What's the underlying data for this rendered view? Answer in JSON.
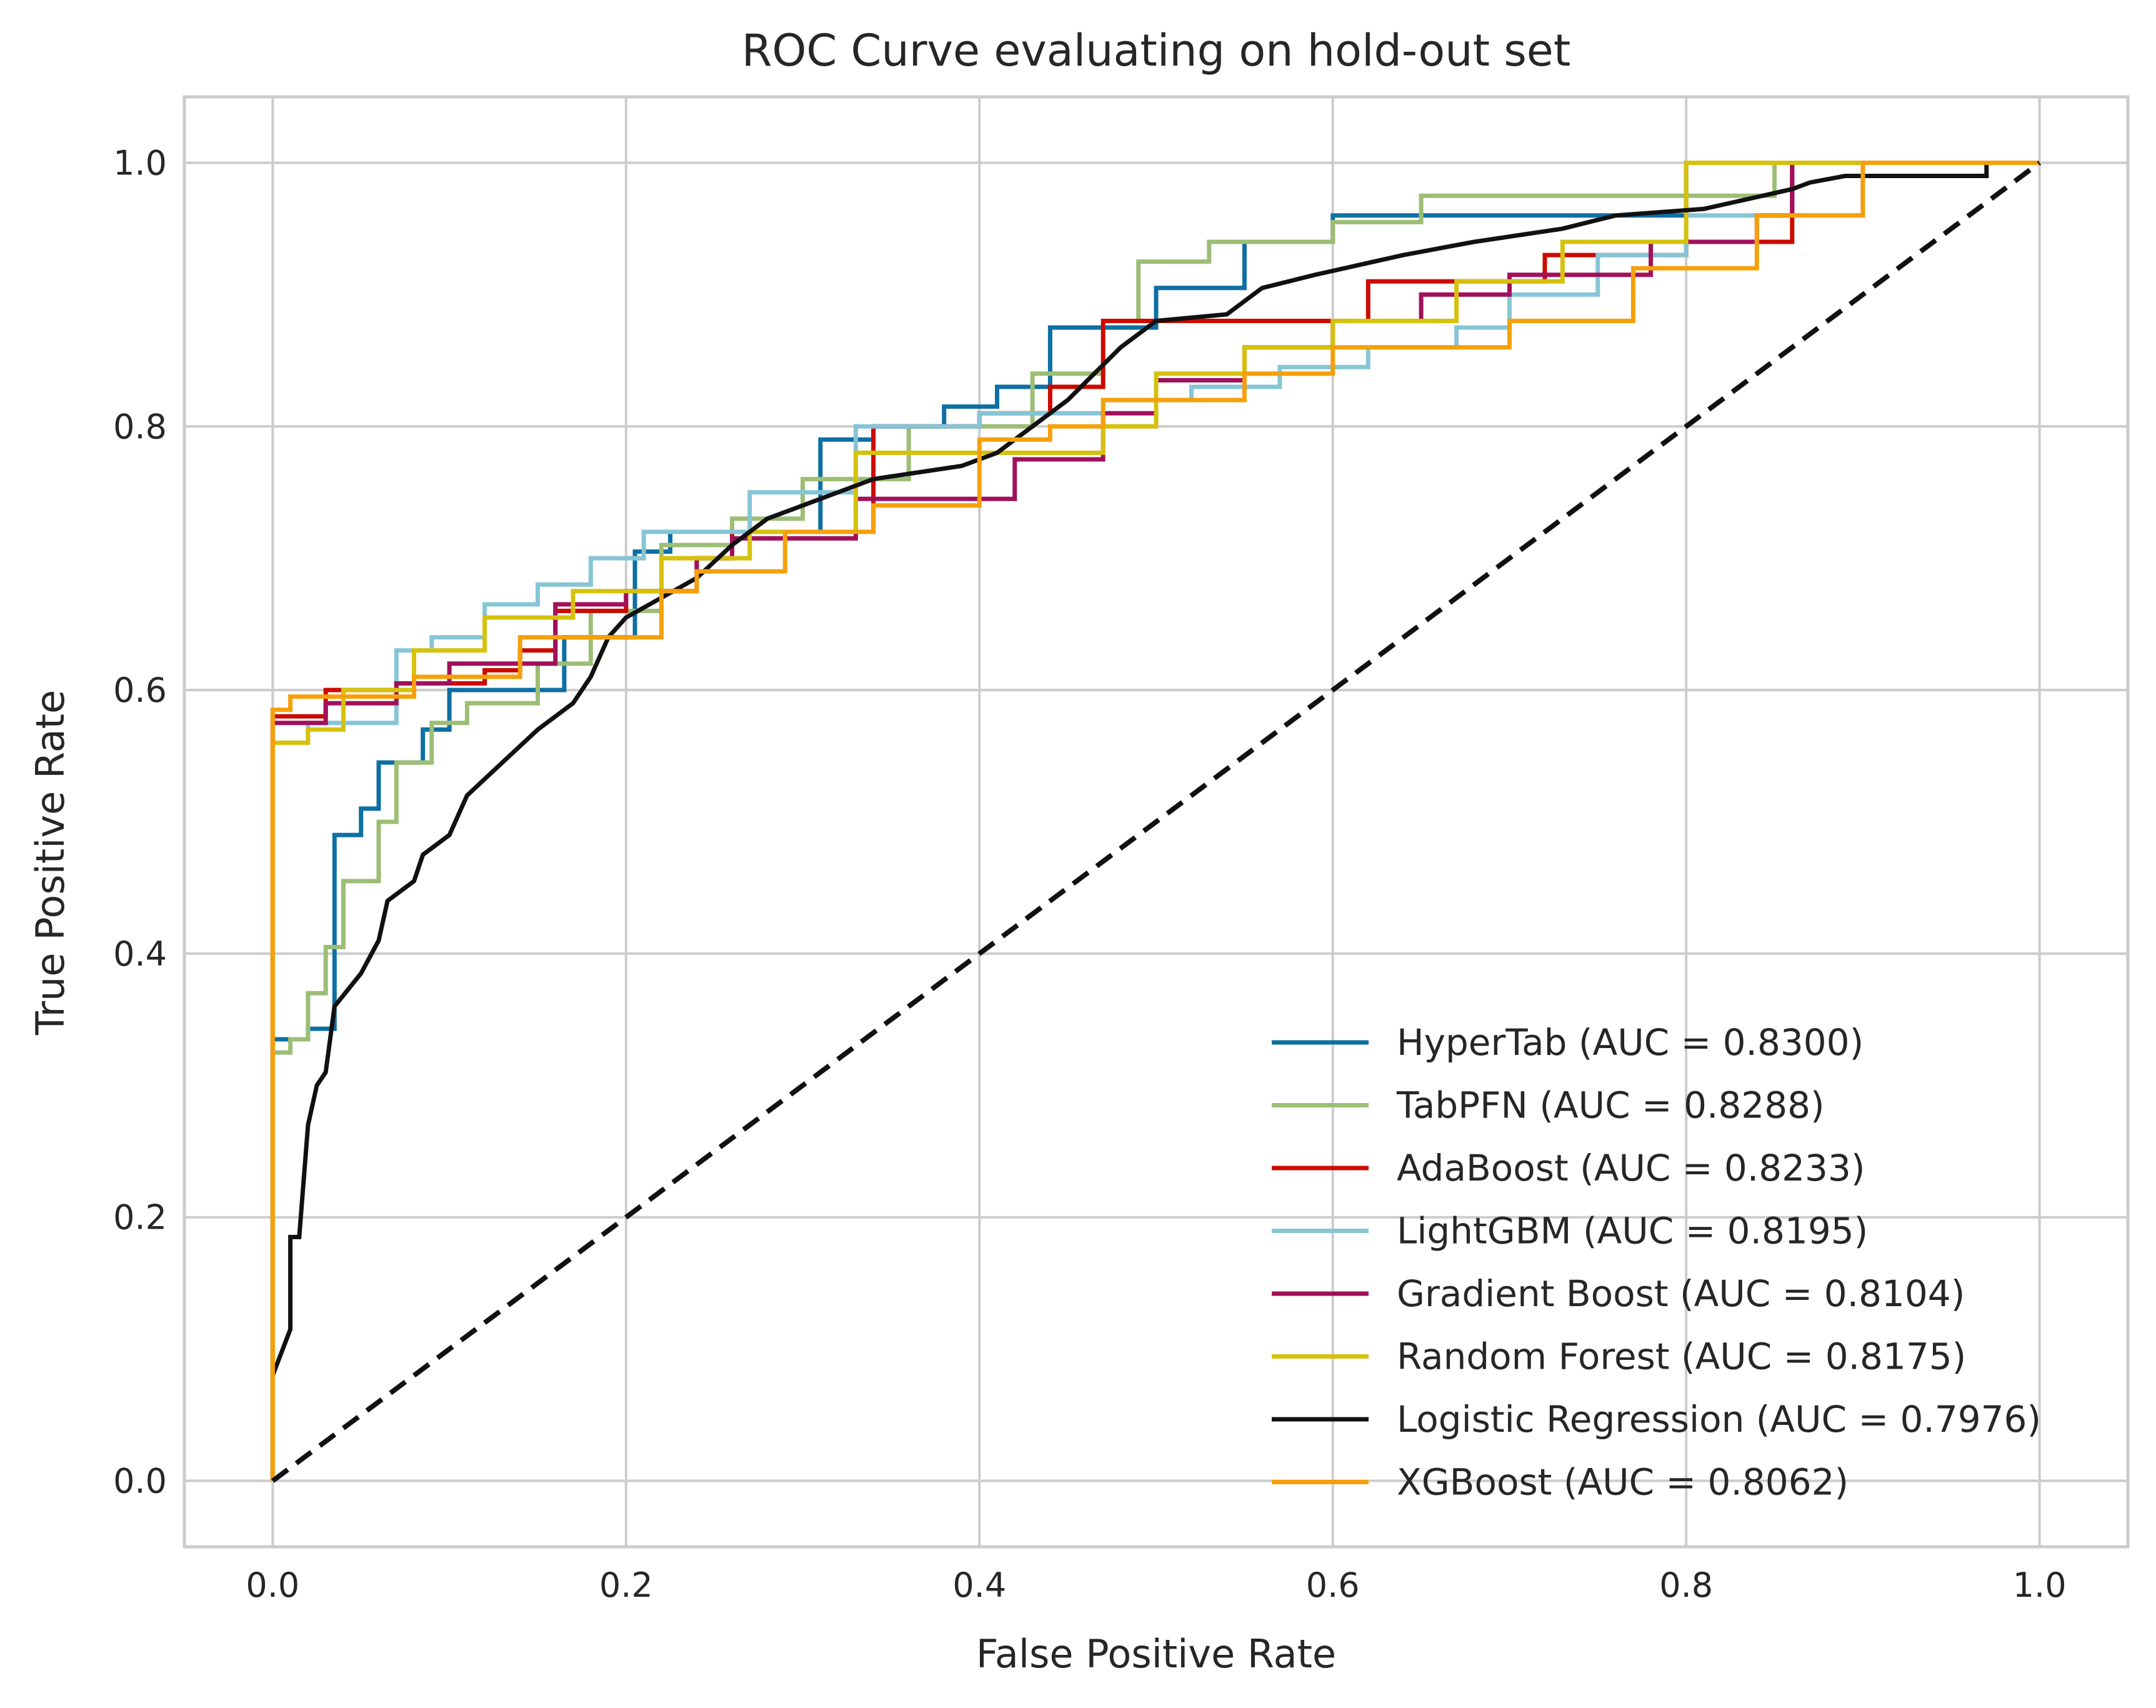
{
  "chart_data": {
    "type": "line",
    "title": "ROC Curve evaluating on hold-out set",
    "xlabel": "False Positive Rate",
    "ylabel": "True Positive Rate",
    "xlim": [
      -0.05,
      1.05
    ],
    "ylim": [
      -0.05,
      1.05
    ],
    "xticks": [
      "0.0",
      "0.2",
      "0.4",
      "0.6",
      "0.8",
      "1.0"
    ],
    "yticks": [
      "0.0",
      "0.2",
      "0.4",
      "0.6",
      "0.8",
      "1.0"
    ],
    "grid": true,
    "legend_position": "lower-right",
    "baseline": {
      "x": [
        0,
        1
      ],
      "y": [
        0,
        1
      ],
      "color": "#111111",
      "style": "dashed"
    },
    "series": [
      {
        "name": "HyperTab (AUC = 0.8300)",
        "color": "#0e6fa3",
        "x": [
          0,
          0,
          0.02,
          0.02,
          0.035,
          0.035,
          0.05,
          0.05,
          0.06,
          0.06,
          0.085,
          0.085,
          0.1,
          0.1,
          0.115,
          0.115,
          0.165,
          0.165,
          0.205,
          0.205,
          0.225,
          0.225,
          0.31,
          0.31,
          0.34,
          0.34,
          0.38,
          0.38,
          0.41,
          0.41,
          0.44,
          0.44,
          0.5,
          0.5,
          0.55,
          0.55,
          0.6,
          0.6,
          0.8,
          0.8,
          1.0
        ],
        "y": [
          0,
          0.335,
          0.335,
          0.343,
          0.343,
          0.49,
          0.49,
          0.51,
          0.51,
          0.545,
          0.545,
          0.57,
          0.57,
          0.6,
          0.6,
          0.6,
          0.6,
          0.64,
          0.64,
          0.705,
          0.705,
          0.72,
          0.72,
          0.79,
          0.79,
          0.8,
          0.8,
          0.815,
          0.815,
          0.83,
          0.83,
          0.875,
          0.875,
          0.905,
          0.905,
          0.94,
          0.94,
          0.96,
          0.96,
          1.0,
          1.0
        ]
      },
      {
        "name": "TabPFN (AUC = 0.8288)",
        "color": "#9cbe75",
        "x": [
          0,
          0,
          0.01,
          0.01,
          0.02,
          0.02,
          0.03,
          0.03,
          0.04,
          0.04,
          0.06,
          0.06,
          0.07,
          0.07,
          0.09,
          0.09,
          0.11,
          0.11,
          0.15,
          0.15,
          0.18,
          0.18,
          0.22,
          0.22,
          0.26,
          0.26,
          0.3,
          0.3,
          0.36,
          0.36,
          0.43,
          0.43,
          0.47,
          0.47,
          0.49,
          0.49,
          0.53,
          0.53,
          0.6,
          0.6,
          0.65,
          0.65,
          0.85,
          0.85,
          1.0
        ],
        "y": [
          0,
          0.325,
          0.325,
          0.335,
          0.335,
          0.37,
          0.37,
          0.405,
          0.405,
          0.455,
          0.455,
          0.5,
          0.5,
          0.545,
          0.545,
          0.575,
          0.575,
          0.59,
          0.59,
          0.62,
          0.62,
          0.66,
          0.66,
          0.71,
          0.71,
          0.73,
          0.73,
          0.76,
          0.76,
          0.8,
          0.8,
          0.84,
          0.84,
          0.88,
          0.88,
          0.925,
          0.925,
          0.94,
          0.94,
          0.955,
          0.955,
          0.975,
          0.975,
          1.0,
          1.0
        ]
      },
      {
        "name": "AdaBoost (AUC = 0.8233)",
        "color": "#cc0a00",
        "x": [
          0,
          0,
          0.03,
          0.03,
          0.07,
          0.07,
          0.12,
          0.12,
          0.14,
          0.14,
          0.16,
          0.16,
          0.2,
          0.2,
          0.24,
          0.24,
          0.26,
          0.26,
          0.34,
          0.34,
          0.4,
          0.4,
          0.44,
          0.44,
          0.47,
          0.47,
          0.55,
          0.55,
          0.62,
          0.62,
          0.72,
          0.72,
          0.8,
          0.8,
          0.86,
          0.86,
          1.0
        ],
        "y": [
          0,
          0.58,
          0.58,
          0.6,
          0.6,
          0.605,
          0.605,
          0.615,
          0.615,
          0.63,
          0.63,
          0.66,
          0.66,
          0.675,
          0.675,
          0.7,
          0.7,
          0.72,
          0.72,
          0.8,
          0.8,
          0.81,
          0.81,
          0.83,
          0.83,
          0.88,
          0.88,
          0.88,
          0.88,
          0.91,
          0.91,
          0.93,
          0.93,
          0.94,
          0.94,
          1.0,
          1.0
        ]
      },
      {
        "name": "LightGBM (AUC = 0.8195)",
        "color": "#86c5d6",
        "x": [
          0,
          0,
          0.02,
          0.02,
          0.07,
          0.07,
          0.09,
          0.09,
          0.12,
          0.12,
          0.15,
          0.15,
          0.18,
          0.18,
          0.21,
          0.21,
          0.27,
          0.27,
          0.33,
          0.33,
          0.4,
          0.4,
          0.47,
          0.47,
          0.52,
          0.52,
          0.57,
          0.57,
          0.62,
          0.62,
          0.67,
          0.67,
          0.7,
          0.7,
          0.75,
          0.75,
          0.8,
          0.8,
          0.9,
          0.9,
          1.0
        ],
        "y": [
          0,
          0.56,
          0.56,
          0.575,
          0.575,
          0.63,
          0.63,
          0.64,
          0.64,
          0.665,
          0.665,
          0.68,
          0.68,
          0.7,
          0.7,
          0.72,
          0.72,
          0.75,
          0.75,
          0.8,
          0.8,
          0.81,
          0.81,
          0.82,
          0.82,
          0.83,
          0.83,
          0.845,
          0.845,
          0.86,
          0.86,
          0.875,
          0.875,
          0.9,
          0.9,
          0.93,
          0.93,
          0.96,
          0.96,
          1.0,
          1.0
        ]
      },
      {
        "name": "Gradient Boost (AUC = 0.8104)",
        "color": "#a1105a",
        "x": [
          0,
          0,
          0.03,
          0.03,
          0.07,
          0.07,
          0.1,
          0.1,
          0.16,
          0.16,
          0.2,
          0.2,
          0.24,
          0.24,
          0.26,
          0.26,
          0.33,
          0.33,
          0.4,
          0.4,
          0.42,
          0.42,
          0.47,
          0.47,
          0.5,
          0.5,
          0.55,
          0.55,
          0.6,
          0.6,
          0.65,
          0.65,
          0.7,
          0.7,
          0.78,
          0.78,
          0.84,
          0.84,
          0.86,
          0.86,
          1.0
        ],
        "y": [
          0,
          0.575,
          0.575,
          0.59,
          0.59,
          0.605,
          0.605,
          0.62,
          0.62,
          0.665,
          0.665,
          0.675,
          0.675,
          0.7,
          0.7,
          0.715,
          0.715,
          0.745,
          0.745,
          0.745,
          0.745,
          0.775,
          0.775,
          0.81,
          0.81,
          0.835,
          0.835,
          0.86,
          0.86,
          0.88,
          0.88,
          0.9,
          0.9,
          0.915,
          0.915,
          0.94,
          0.94,
          0.96,
          0.96,
          1.0,
          1.0
        ]
      },
      {
        "name": "Random Forest (AUC = 0.8175)",
        "color": "#d6c10d",
        "x": [
          0,
          0,
          0.02,
          0.02,
          0.04,
          0.04,
          0.08,
          0.08,
          0.12,
          0.12,
          0.17,
          0.17,
          0.22,
          0.22,
          0.27,
          0.27,
          0.33,
          0.33,
          0.4,
          0.4,
          0.47,
          0.47,
          0.5,
          0.5,
          0.55,
          0.55,
          0.6,
          0.6,
          0.67,
          0.67,
          0.73,
          0.73,
          0.8,
          0.8,
          1.0
        ],
        "y": [
          0,
          0.56,
          0.56,
          0.57,
          0.57,
          0.6,
          0.6,
          0.63,
          0.63,
          0.655,
          0.655,
          0.675,
          0.675,
          0.7,
          0.7,
          0.72,
          0.72,
          0.78,
          0.78,
          0.78,
          0.78,
          0.8,
          0.8,
          0.84,
          0.84,
          0.86,
          0.86,
          0.88,
          0.88,
          0.91,
          0.91,
          0.94,
          0.94,
          1.0,
          1.0
        ]
      },
      {
        "name": "Logistic Regression (AUC = 0.7976)",
        "color": "#111111",
        "x": [
          0,
          0.01,
          0.01,
          0.015,
          0.02,
          0.025,
          0.03,
          0.035,
          0.035,
          0.05,
          0.06,
          0.065,
          0.08,
          0.085,
          0.1,
          0.11,
          0.13,
          0.15,
          0.17,
          0.18,
          0.19,
          0.2,
          0.22,
          0.24,
          0.26,
          0.28,
          0.3,
          0.34,
          0.39,
          0.41,
          0.45,
          0.48,
          0.5,
          0.54,
          0.56,
          0.59,
          0.64,
          0.68,
          0.73,
          0.76,
          0.81,
          0.86,
          0.87,
          0.89,
          0.97,
          0.97,
          1.0
        ],
        "y": [
          0.08,
          0.115,
          0.185,
          0.185,
          0.27,
          0.3,
          0.31,
          0.36,
          0.36,
          0.385,
          0.41,
          0.44,
          0.455,
          0.475,
          0.49,
          0.52,
          0.545,
          0.57,
          0.59,
          0.61,
          0.64,
          0.655,
          0.67,
          0.685,
          0.71,
          0.73,
          0.74,
          0.76,
          0.77,
          0.78,
          0.82,
          0.86,
          0.88,
          0.885,
          0.905,
          0.915,
          0.93,
          0.94,
          0.95,
          0.96,
          0.965,
          0.98,
          0.985,
          0.99,
          0.99,
          1.0,
          1.0
        ]
      },
      {
        "name": "XGBoost (AUC = 0.8062)",
        "color": "#f5a00b",
        "x": [
          0,
          0,
          0.01,
          0.01,
          0.08,
          0.08,
          0.14,
          0.14,
          0.22,
          0.22,
          0.24,
          0.24,
          0.29,
          0.29,
          0.34,
          0.34,
          0.4,
          0.4,
          0.44,
          0.44,
          0.47,
          0.47,
          0.55,
          0.55,
          0.6,
          0.6,
          0.7,
          0.7,
          0.77,
          0.77,
          0.84,
          0.84,
          0.9,
          0.9,
          1.0
        ],
        "y": [
          0,
          0.585,
          0.585,
          0.595,
          0.595,
          0.61,
          0.61,
          0.64,
          0.64,
          0.675,
          0.675,
          0.69,
          0.69,
          0.72,
          0.72,
          0.74,
          0.74,
          0.79,
          0.79,
          0.8,
          0.8,
          0.82,
          0.82,
          0.84,
          0.84,
          0.86,
          0.86,
          0.88,
          0.88,
          0.92,
          0.92,
          0.96,
          0.96,
          1.0,
          1.0
        ]
      }
    ]
  }
}
